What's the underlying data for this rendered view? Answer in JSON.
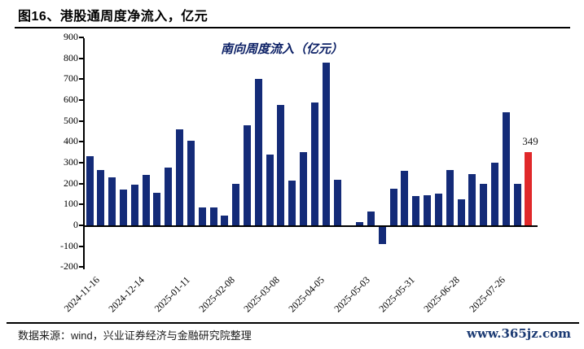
{
  "header": {
    "title": "图16、港股通周度净流入，亿元"
  },
  "chart_data": {
    "type": "bar",
    "title": "南向周度流入（亿元）",
    "categories": [
      "2024-11-16",
      "2024-12-14",
      "2025-01-11",
      "2025-02-08",
      "2025-03-08",
      "2025-04-05",
      "2025-05-03",
      "2025-05-31",
      "2025-06-28",
      "2025-07-26"
    ],
    "label_every": 4,
    "values": [
      330,
      265,
      230,
      170,
      195,
      240,
      155,
      275,
      460,
      405,
      85,
      85,
      45,
      200,
      480,
      700,
      340,
      575,
      215,
      350,
      590,
      780,
      220,
      0,
      15,
      65,
      -80,
      175,
      260,
      140,
      145,
      150,
      265,
      125,
      245,
      200,
      300,
      540,
      200,
      349
    ],
    "ylim": [
      -200,
      900
    ],
    "ytick_step": 100,
    "grid": false,
    "legend": "none",
    "highlight_index": 39,
    "annotation": {
      "index": 39,
      "text": "349"
    },
    "colors": {
      "bar": "#142B78",
      "highlight": "#E0282A",
      "title": "#0D2166",
      "axis": "#000000"
    }
  },
  "footer": {
    "source": "数据来源：wind，兴业证券经济与金融研究院整理",
    "site": "www.365jz.com",
    "site_color": "#1B3A73"
  }
}
